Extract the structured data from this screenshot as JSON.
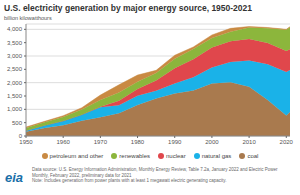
{
  "chart_data": {
    "type": "area",
    "stacked": true,
    "title": "U.S. electricity generation by major energy source, 1950-2021",
    "y_label": "billion kilowatthours",
    "x": [
      1950,
      1955,
      1960,
      1965,
      1970,
      1975,
      1980,
      1985,
      1990,
      1995,
      2000,
      2005,
      2010,
      2015,
      2020,
      2021
    ],
    "series": [
      {
        "name": "petroleum and other",
        "color": "#c98a43",
        "values": [
          34,
          37,
          48,
          65,
          184,
          289,
          246,
          100,
          127,
          75,
          111,
          122,
          37,
          28,
          18,
          19
        ]
      },
      {
        "name": "renewables",
        "color": "#8cb63c",
        "values": [
          101,
          116,
          149,
          197,
          250,
          303,
          279,
          283,
          357,
          384,
          357,
          358,
          427,
          556,
          794,
          826
        ]
      },
      {
        "name": "nuclear",
        "color": "#e0474c",
        "values": [
          0,
          0,
          1,
          4,
          22,
          173,
          251,
          384,
          577,
          673,
          754,
          782,
          807,
          797,
          790,
          778
        ]
      },
      {
        "name": "natural gas",
        "color": "#1ab2e8",
        "values": [
          45,
          95,
          158,
          222,
          373,
          300,
          346,
          292,
          373,
          496,
          601,
          761,
          988,
          1335,
          1624,
          1579
        ]
      },
      {
        "name": "coal",
        "color": "#a97a4e",
        "values": [
          155,
          301,
          403,
          571,
          704,
          853,
          1162,
          1402,
          1594,
          1709,
          1966,
          2013,
          1847,
          1352,
          773,
          898
        ]
      }
    ],
    "xlim": [
      1950,
      2021
    ],
    "xticks": [
      1950,
      1960,
      1970,
      1980,
      1990,
      2000,
      2010,
      2020
    ],
    "ylim": [
      0,
      4200
    ],
    "yticks": [
      0,
      500,
      {
        "value": 1000,
        "label": "1,000"
      },
      {
        "value": 1500,
        "label": "1,500"
      },
      {
        "value": 2000,
        "label": "2,000"
      },
      {
        "value": 2500,
        "label": "2,500"
      },
      {
        "value": 3000,
        "label": "3,000"
      },
      {
        "value": 3500,
        "label": "3,500"
      },
      {
        "value": 4000,
        "label": "4,000"
      }
    ],
    "grid": true,
    "legend": "bottom",
    "annotations": [
      "eia",
      "Data source: U.S. Energy Information Administration, Monthly Energy Review, Table 7.2a, January 2022 and Electric Power Monthly, February 2022, preliminary data for 2021",
      "Note: Includes generation from power plants with at least 1 megawatt electric generating capacity."
    ]
  }
}
